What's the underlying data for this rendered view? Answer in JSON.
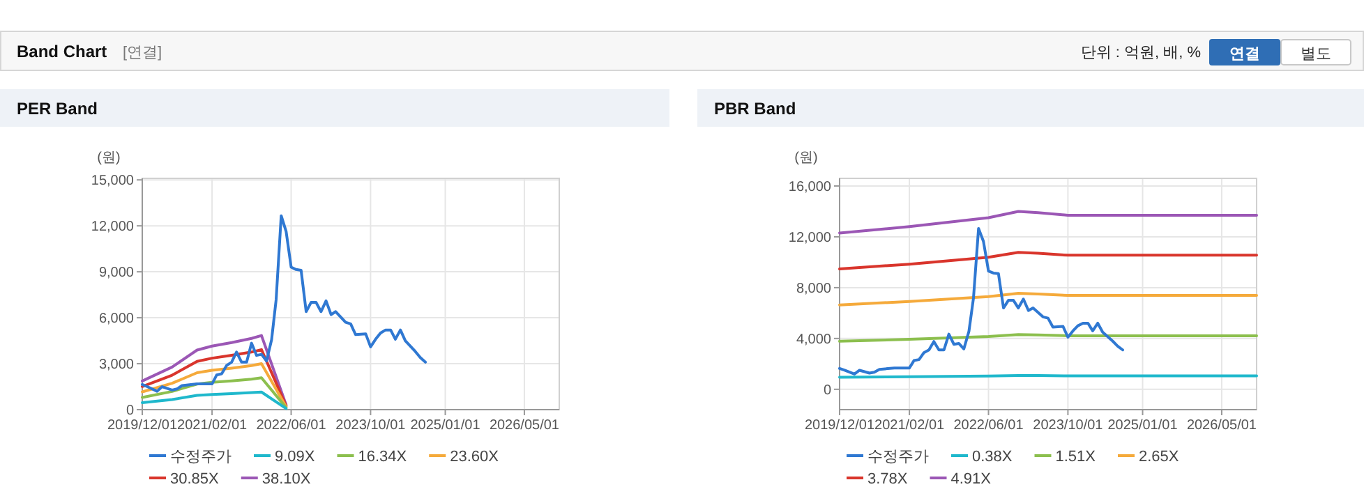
{
  "chart_data": [
    {
      "type": "other",
      "title": "Band Chart",
      "annotations": [
        "[연결]",
        "단위 : 억원, 배, %",
        "연결",
        "별도"
      ]
    },
    {
      "type": "line",
      "title": "PER Band",
      "ylabel": "(원)",
      "xlim": [
        "2019-12-01",
        "2026-12-01"
      ],
      "ylim": [
        0,
        15100
      ],
      "xticks": [
        {
          "value": "2019-12-01",
          "label": "2019/12/01"
        },
        {
          "value": "2021-02-01",
          "label": "2021/02/01"
        },
        {
          "value": "2022-06-01",
          "label": "2022/06/01"
        },
        {
          "value": "2023-10-01",
          "label": "2023/10/01"
        },
        {
          "value": "2025-01-01",
          "label": "2025/01/01"
        },
        {
          "value": "2026-05-01",
          "label": "2026/05/01"
        }
      ],
      "yticks": [
        0,
        {
          "value": 3000,
          "label": "3,000"
        },
        {
          "value": 6000,
          "label": "6,000"
        },
        {
          "value": 9000,
          "label": "9,000"
        },
        {
          "value": 12000,
          "label": "12,000"
        },
        {
          "value": 15000,
          "label": "15,000"
        }
      ],
      "grid": true,
      "legend": "bottom",
      "line_style": "solid",
      "series": [
        {
          "name": "수정주가",
          "color": "#2f78d2",
          "x": [
            "2019-12",
            "2020-01",
            "2020-03",
            "2020-04",
            "2020-06",
            "2020-07",
            "2020-08",
            "2020-11",
            "2021-02",
            "2021-03",
            "2021-04",
            "2021-05",
            "2021-06",
            "2021-07",
            "2021-08",
            "2021-09",
            "2021-10",
            "2021-11",
            "2021-12",
            "2022-01",
            "2022-02",
            "2022-03",
            "2022-04",
            "2022-05",
            "2022-06",
            "2022-07",
            "2022-08",
            "2022-09",
            "2022-10",
            "2022-11",
            "2022-12",
            "2023-01",
            "2023-02",
            "2023-03",
            "2023-05",
            "2023-06",
            "2023-07",
            "2023-09",
            "2023-10",
            "2023-11",
            "2023-12",
            "2024-01",
            "2024-02",
            "2024-03",
            "2024-04",
            "2024-05",
            "2024-07",
            "2024-08",
            "2024-09"
          ],
          "values": [
            1640,
            1500,
            1200,
            1500,
            1280,
            1350,
            1570,
            1680,
            1680,
            2260,
            2340,
            2880,
            3100,
            3760,
            3100,
            3100,
            4340,
            3540,
            3610,
            3180,
            4560,
            7190,
            12660,
            11640,
            9300,
            9150,
            9100,
            6400,
            7000,
            7000,
            6400,
            7100,
            6200,
            6400,
            5700,
            5600,
            4900,
            4950,
            4100,
            4600,
            5000,
            5200,
            5200,
            4600,
            5200,
            4500,
            3800,
            3400,
            3100
          ]
        },
        {
          "name": "9.09X",
          "color": "#1fb8cc",
          "x": [
            "2019-12",
            "2020-06",
            "2020-11",
            "2021-02",
            "2021-06",
            "2021-10",
            "2021-12",
            "2022-05"
          ],
          "values": [
            450,
            660,
            930,
            990,
            1050,
            1110,
            1150,
            70
          ]
        },
        {
          "name": "16.34X",
          "color": "#8cbf4e",
          "x": [
            "2019-12",
            "2020-06",
            "2020-11",
            "2021-02",
            "2021-06",
            "2021-10",
            "2021-12",
            "2022-05"
          ],
          "values": [
            800,
            1190,
            1670,
            1780,
            1880,
            1990,
            2080,
            130
          ]
        },
        {
          "name": "23.60X",
          "color": "#f5aa3b",
          "x": [
            "2019-12",
            "2020-06",
            "2020-11",
            "2021-02",
            "2021-06",
            "2021-10",
            "2021-12",
            "2022-05"
          ],
          "values": [
            1160,
            1720,
            2410,
            2570,
            2710,
            2880,
            3000,
            190
          ]
        },
        {
          "name": "30.85X",
          "color": "#d9352c",
          "x": [
            "2019-12",
            "2020-06",
            "2020-11",
            "2021-02",
            "2021-06",
            "2021-10",
            "2021-12",
            "2022-05"
          ],
          "values": [
            1510,
            2250,
            3150,
            3360,
            3550,
            3760,
            3920,
            250
          ]
        },
        {
          "name": "38.10X",
          "color": "#9b57b5",
          "x": [
            "2019-12",
            "2020-06",
            "2020-11",
            "2021-02",
            "2021-06",
            "2021-10",
            "2021-12",
            "2022-05"
          ],
          "values": [
            1870,
            2780,
            3890,
            4150,
            4380,
            4650,
            4840,
            310
          ]
        }
      ]
    },
    {
      "type": "line",
      "title": "PBR Band",
      "ylabel": "(원)",
      "xlim": [
        "2019-12-01",
        "2026-12-01"
      ],
      "ylim": [
        -1600,
        16600
      ],
      "xticks": [
        {
          "value": "2019-12-01",
          "label": "2019/12/01"
        },
        {
          "value": "2021-02-01",
          "label": "2021/02/01"
        },
        {
          "value": "2022-06-01",
          "label": "2022/06/01"
        },
        {
          "value": "2023-10-01",
          "label": "2023/10/01"
        },
        {
          "value": "2025-01-01",
          "label": "2025/01/01"
        },
        {
          "value": "2026-05-01",
          "label": "2026/05/01"
        }
      ],
      "yticks": [
        0,
        {
          "value": 4000,
          "label": "4,000"
        },
        {
          "value": 8000,
          "label": "8,000"
        },
        {
          "value": 12000,
          "label": "12,000"
        },
        {
          "value": 16000,
          "label": "16,000"
        }
      ],
      "grid": true,
      "legend": "bottom",
      "line_style": "solid",
      "series": [
        {
          "name": "수정주가",
          "color": "#2f78d2",
          "x": [
            "2019-12",
            "2020-01",
            "2020-03",
            "2020-04",
            "2020-06",
            "2020-07",
            "2020-08",
            "2020-11",
            "2021-02",
            "2021-03",
            "2021-04",
            "2021-05",
            "2021-06",
            "2021-07",
            "2021-08",
            "2021-09",
            "2021-10",
            "2021-11",
            "2021-12",
            "2022-01",
            "2022-02",
            "2022-03",
            "2022-04",
            "2022-05",
            "2022-06",
            "2022-07",
            "2022-08",
            "2022-09",
            "2022-10",
            "2022-11",
            "2022-12",
            "2023-01",
            "2023-02",
            "2023-03",
            "2023-05",
            "2023-06",
            "2023-07",
            "2023-09",
            "2023-10",
            "2023-11",
            "2023-12",
            "2024-01",
            "2024-02",
            "2024-03",
            "2024-04",
            "2024-05",
            "2024-07",
            "2024-08",
            "2024-09"
          ],
          "values": [
            1640,
            1500,
            1200,
            1500,
            1280,
            1350,
            1570,
            1680,
            1680,
            2260,
            2340,
            2880,
            3100,
            3760,
            3100,
            3100,
            4340,
            3540,
            3610,
            3180,
            4560,
            7190,
            12660,
            11640,
            9300,
            9150,
            9100,
            6400,
            7000,
            7000,
            6400,
            7100,
            6200,
            6400,
            5700,
            5600,
            4900,
            4950,
            4100,
            4600,
            5000,
            5200,
            5200,
            4600,
            5200,
            4500,
            3800,
            3400,
            3100
          ]
        },
        {
          "name": "0.38X",
          "color": "#1fb8cc",
          "x": [
            "2019-12",
            "2021-02",
            "2022-06",
            "2022-12",
            "2023-04",
            "2023-10",
            "2026-12"
          ],
          "values": [
            950,
            990,
            1050,
            1080,
            1080,
            1060,
            1060
          ]
        },
        {
          "name": "1.51X",
          "color": "#8cbf4e",
          "x": [
            "2019-12",
            "2021-02",
            "2022-06",
            "2022-12",
            "2023-04",
            "2023-10",
            "2026-12"
          ],
          "values": [
            3780,
            3940,
            4150,
            4310,
            4280,
            4210,
            4210
          ]
        },
        {
          "name": "2.65X",
          "color": "#f5aa3b",
          "x": [
            "2019-12",
            "2021-02",
            "2022-06",
            "2022-12",
            "2023-04",
            "2023-10",
            "2026-12"
          ],
          "values": [
            6640,
            6910,
            7290,
            7560,
            7500,
            7390,
            7390
          ]
        },
        {
          "name": "3.78X",
          "color": "#d9352c",
          "x": [
            "2019-12",
            "2021-02",
            "2022-06",
            "2022-12",
            "2023-04",
            "2023-10",
            "2026-12"
          ],
          "values": [
            9470,
            9850,
            10390,
            10780,
            10700,
            10550,
            10550
          ]
        },
        {
          "name": "4.91X",
          "color": "#9b57b5",
          "x": [
            "2019-12",
            "2021-02",
            "2022-06",
            "2022-12",
            "2023-04",
            "2023-10",
            "2026-12"
          ],
          "values": [
            12300,
            12800,
            13500,
            14000,
            13900,
            13700,
            13700
          ]
        }
      ]
    }
  ]
}
